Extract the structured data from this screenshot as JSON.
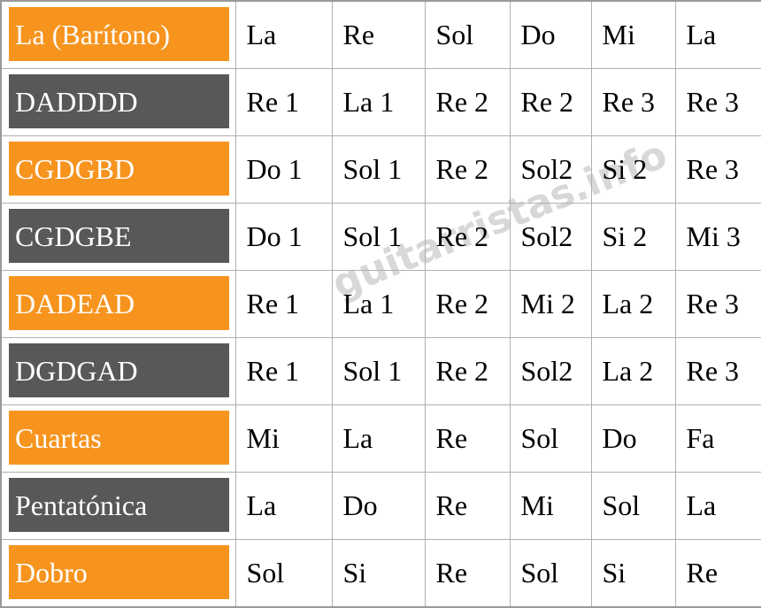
{
  "colors": {
    "orange": "#f7941e",
    "dark_gray": "#58585a",
    "border": "#b0b0b0",
    "outer_border": "#9a9a9a",
    "label_text": "#ffffff",
    "note_text": "#000000",
    "watermark": "#d8d8d8"
  },
  "watermark": {
    "text": "guitarristas.info"
  },
  "chart_data": {
    "type": "table",
    "rows": [
      [
        "La (Barítono)",
        "La",
        "Re",
        "Sol",
        "Do",
        "Mi",
        "La"
      ],
      [
        "DADDDD",
        "Re 1",
        "La 1",
        "Re 2",
        "Re 2",
        "Re 3",
        "Re 3"
      ],
      [
        "CGDGBD",
        "Do 1",
        "Sol 1",
        "Re 2",
        "Sol2",
        "Si 2",
        "Re 3"
      ],
      [
        "CGDGBE",
        "Do 1",
        "Sol 1",
        "Re 2",
        "Sol2",
        "Si 2",
        "Mi 3"
      ],
      [
        "DADEAD",
        "Re 1",
        "La 1",
        "Re 2",
        "Mi 2",
        "La 2",
        "Re 3"
      ],
      [
        "DGDGAD",
        "Re 1",
        "Sol 1",
        "Re 2",
        "Sol2",
        "La 2",
        "Re 3"
      ],
      [
        "Cuartas",
        "Mi",
        "La",
        "Re",
        "Sol",
        "Do",
        "Fa"
      ],
      [
        "Pentatónica",
        "La",
        "Do",
        "Re",
        "Mi",
        "Sol",
        "La"
      ],
      [
        "Dobro",
        "Sol",
        "Si",
        "Re",
        "Sol",
        "Si",
        "Re"
      ]
    ]
  }
}
